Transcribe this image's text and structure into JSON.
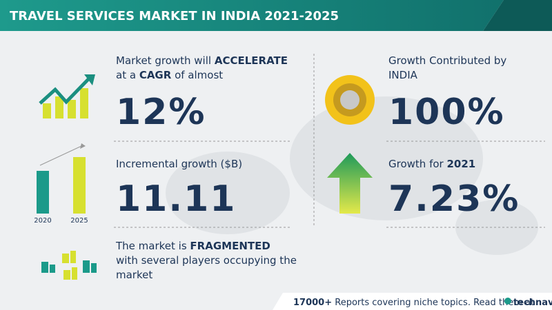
{
  "header": {
    "title": "TRAVEL SERVICES MARKET IN INDIA 2021-2025"
  },
  "left": [
    {
      "lines": [
        [
          "Market growth will ",
          "ACCELERATE"
        ],
        [
          "at a ",
          "CAGR",
          "  of almost"
        ]
      ],
      "value": "12%"
    },
    {
      "lines": [
        [
          "Incremental growth ($B)"
        ]
      ],
      "value": "11.11",
      "bar_labels": [
        "2020",
        "2025"
      ]
    },
    {
      "lines": [
        [
          "The market is ",
          "FRAGMENTED"
        ],
        [
          "with several players occupying the"
        ],
        [
          "market"
        ]
      ]
    }
  ],
  "right": [
    {
      "lines": [
        [
          "Growth Contributed by"
        ],
        [
          "INDIA"
        ]
      ],
      "value": "100%"
    },
    {
      "lines": [
        [
          "Growth for  ",
          "2021"
        ]
      ],
      "value": "7.23%"
    }
  ],
  "footer": {
    "count": "17000+",
    "text": " Reports covering niche topics. Read them at",
    "brand": "technavio"
  }
}
